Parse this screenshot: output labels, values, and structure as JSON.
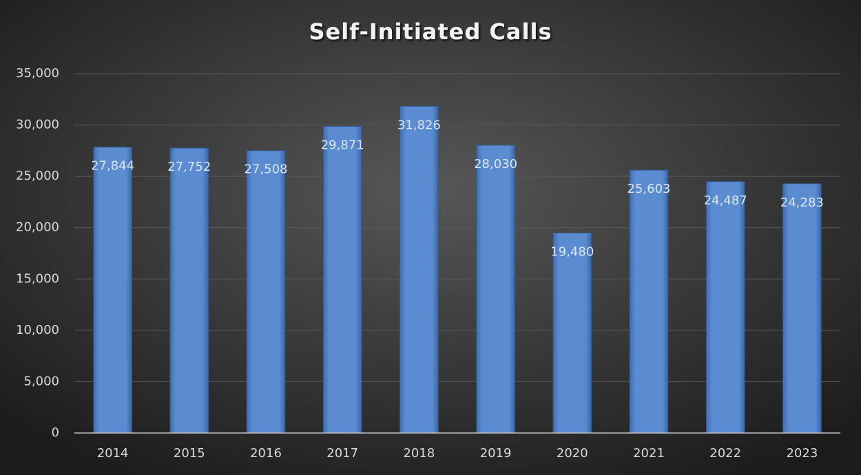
{
  "chart_data": {
    "type": "bar",
    "title": "Self-Initiated Calls",
    "categories": [
      "2014",
      "2015",
      "2016",
      "2017",
      "2018",
      "2019",
      "2020",
      "2021",
      "2022",
      "2023"
    ],
    "values": [
      27844,
      27752,
      27508,
      29871,
      31826,
      28030,
      19480,
      25603,
      24487,
      24283
    ],
    "value_labels": [
      "27,844",
      "27,752",
      "27,508",
      "29,871",
      "31,826",
      "28,030",
      "19,480",
      "25,603",
      "24,487",
      "24,283"
    ],
    "color": "#4f81bd",
    "ylim": [
      0,
      35000
    ],
    "yticks": [
      0,
      {
        "value": 5000,
        "label": "5,000"
      },
      {
        "value": 10000,
        "label": "10,000"
      },
      {
        "value": 15000,
        "label": "15,000"
      },
      {
        "value": 20000,
        "label": "20,000"
      },
      {
        "value": 25000,
        "label": "25,000"
      },
      {
        "value": 30000,
        "label": "30,000"
      },
      {
        "value": 35000,
        "label": "35,000"
      }
    ],
    "grid": true
  }
}
